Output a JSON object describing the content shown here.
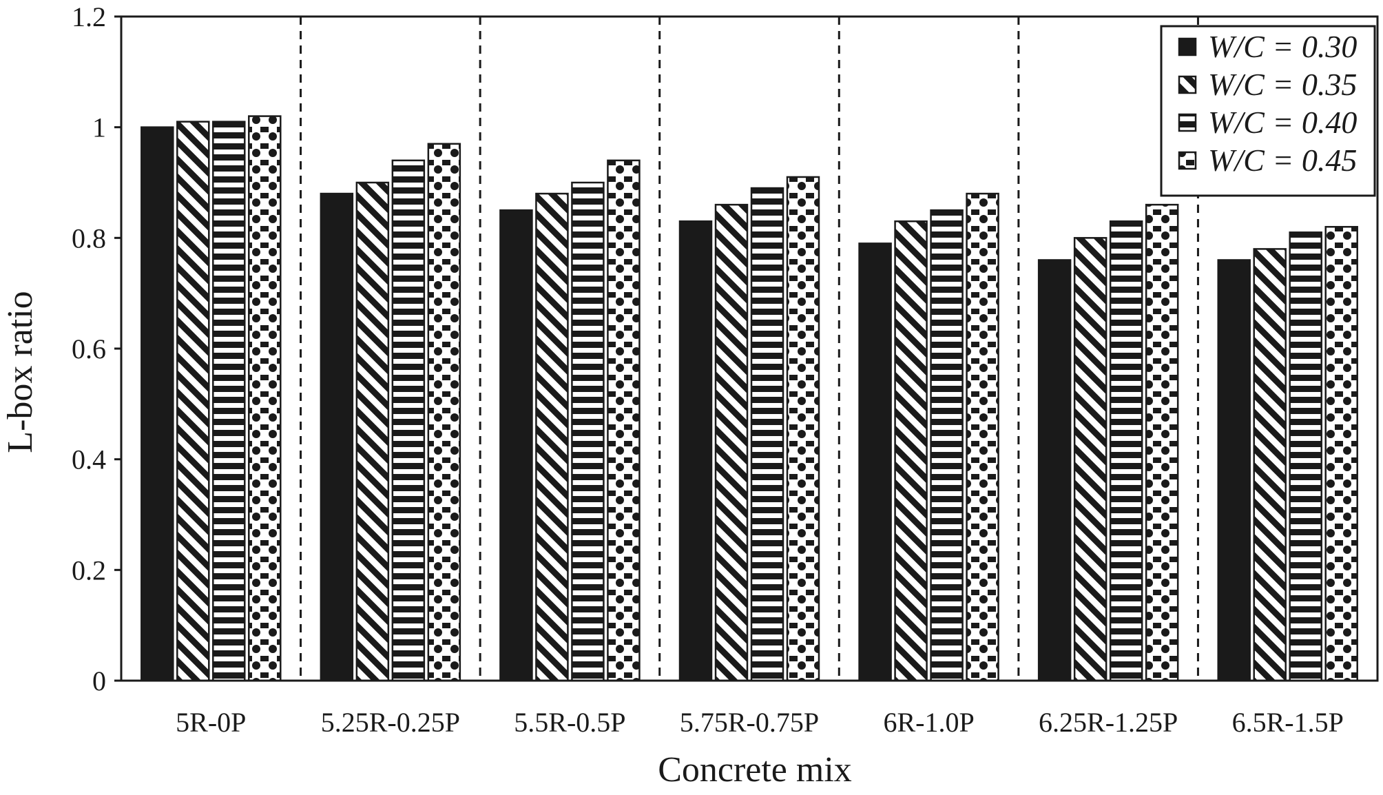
{
  "chart_data": {
    "type": "bar",
    "title": "",
    "xlabel": "Concrete mix",
    "ylabel": "L-box ratio",
    "ylim": [
      0,
      1.2
    ],
    "yticks": [
      "0",
      "0.2",
      "0.4",
      "0.6",
      "0.8",
      "1",
      "1.2"
    ],
    "categories": [
      "5R-0P",
      "5.25R-0.25P",
      "5.5R-0.5P",
      "5.75R-0.75P",
      "6R-1.0P",
      "6.25R-1.25P",
      "6.5R-1.5P"
    ],
    "series": [
      {
        "name": "W/C = 0.30",
        "pattern": "solid",
        "values": [
          1.0,
          0.88,
          0.85,
          0.83,
          0.79,
          0.76,
          0.76
        ]
      },
      {
        "name": "W/C = 0.35",
        "pattern": "diagonal",
        "values": [
          1.01,
          0.9,
          0.88,
          0.86,
          0.83,
          0.8,
          0.78
        ]
      },
      {
        "name": "W/C = 0.40",
        "pattern": "horizontal",
        "values": [
          1.01,
          0.94,
          0.9,
          0.89,
          0.85,
          0.83,
          0.81
        ]
      },
      {
        "name": "W/C = 0.45",
        "pattern": "dots",
        "values": [
          1.02,
          0.97,
          0.94,
          0.91,
          0.88,
          0.86,
          0.82
        ]
      }
    ],
    "grid": false,
    "group_separators": "dashed",
    "legend_position": "top-right",
    "colors": {
      "ink": "#1a1a1a",
      "background": "#ffffff"
    }
  }
}
